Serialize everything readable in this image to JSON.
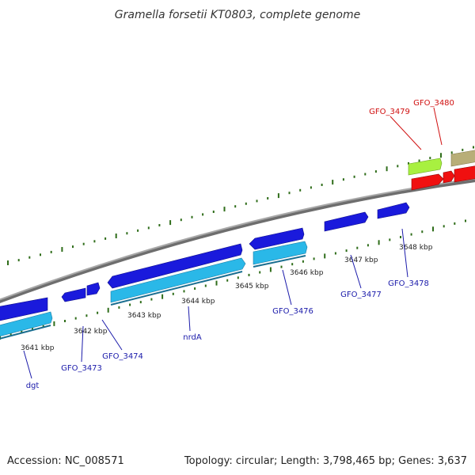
{
  "title": "Gramella forsetii KT0803, complete genome",
  "footer": {
    "accession": "Accession: NC_008571",
    "topology": "Topology: circular; Length: 3,798,465 bp; Genes: 3,637"
  },
  "colors": {
    "backbone": "#8a8a8a",
    "tick": "#2f6d1a",
    "forward_cds": "#1a1adc",
    "reverse_cds": "#2ab8e8",
    "red_cds": "#f01010",
    "lime_cds": "#a8f040",
    "olive_cds": "#b8ae78",
    "label_blue": "#1a1aaa",
    "label_red": "#d01010"
  },
  "kbp_labels": [
    "3641 kbp",
    "3642 kbp",
    "3643 kbp",
    "3644 kbp",
    "3645 kbp",
    "3646 kbp",
    "3647 kbp",
    "3648 kbp"
  ],
  "gene_labels": {
    "dgt": "dgt",
    "gfo_3473": "GFO_3473",
    "gfo_3474": "GFO_3474",
    "nrda": "nrdA",
    "gfo_3476": "GFO_3476",
    "gfo_3477": "GFO_3477",
    "gfo_3478": "GFO_3478",
    "gfo_3479": "GFO_3479",
    "gfo_3480": "GFO_3480"
  }
}
